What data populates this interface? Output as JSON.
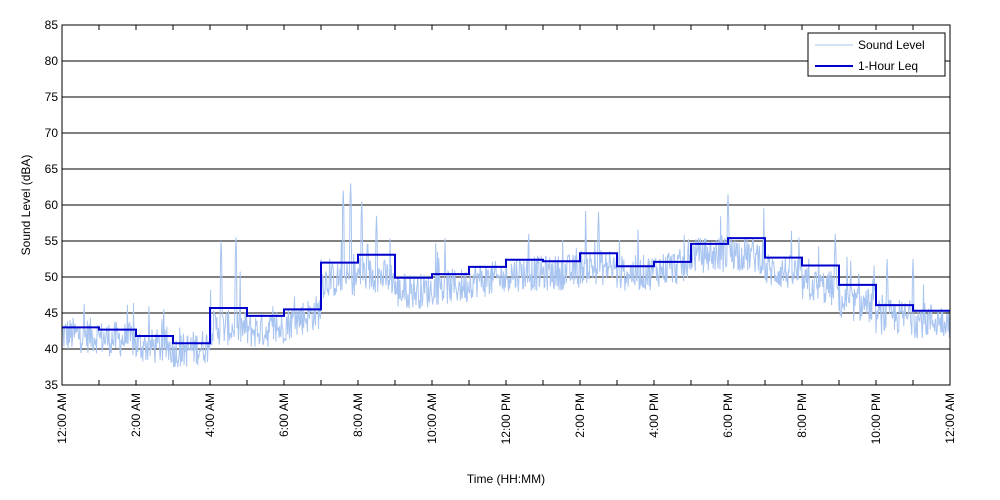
{
  "chart_data": {
    "type": "line",
    "xlabel": "Time (HH:MM)",
    "ylabel": "Sound Level (dBA)",
    "ylim": [
      35,
      85
    ],
    "yticks": [
      35,
      40,
      45,
      50,
      55,
      60,
      65,
      70,
      75,
      80,
      85
    ],
    "xlim_hours": [
      0,
      24
    ],
    "x_ticks": [
      {
        "hour": 0,
        "label": "12:00 AM"
      },
      {
        "hour": 2,
        "label": "2:00 AM"
      },
      {
        "hour": 4,
        "label": "4:00 AM"
      },
      {
        "hour": 6,
        "label": "6:00 AM"
      },
      {
        "hour": 8,
        "label": "8:00 AM"
      },
      {
        "hour": 10,
        "label": "10:00 AM"
      },
      {
        "hour": 12,
        "label": "12:00 PM"
      },
      {
        "hour": 14,
        "label": "2:00 PM"
      },
      {
        "hour": 16,
        "label": "4:00 PM"
      },
      {
        "hour": 18,
        "label": "6:00 PM"
      },
      {
        "hour": 20,
        "label": "8:00 PM"
      },
      {
        "hour": 22,
        "label": "10:00 PM"
      },
      {
        "hour": 24,
        "label": "12:00 AM"
      }
    ],
    "grid": "horizontal",
    "legend_position": "top-right",
    "series": [
      {
        "name": "Sound Level",
        "color": "#a8c4f0",
        "style": "thin-line",
        "hourly_baseline": [
          42,
          41.5,
          40.5,
          39.5,
          43,
          42.5,
          43.5,
          49.5,
          50.5,
          48,
          48.5,
          49.5,
          50.5,
          50.5,
          51.5,
          50.5,
          51,
          53,
          53.5,
          51,
          49,
          46.5,
          44.5,
          44
        ],
        "notable_peaks": [
          {
            "hour": 4.3,
            "value": 55
          },
          {
            "hour": 4.7,
            "value": 55.5
          },
          {
            "hour": 7.6,
            "value": 62
          },
          {
            "hour": 7.8,
            "value": 63
          },
          {
            "hour": 8.1,
            "value": 60.5
          },
          {
            "hour": 8.5,
            "value": 58.5
          },
          {
            "hour": 14.5,
            "value": 59
          },
          {
            "hour": 18.0,
            "value": 61.5
          },
          {
            "hour": 20.9,
            "value": 56
          },
          {
            "hour": 22.3,
            "value": 52.5
          },
          {
            "hour": 23.0,
            "value": 52.5
          }
        ]
      },
      {
        "name": "1-Hour Leq",
        "color": "#0000cc",
        "style": "step",
        "hourly_values": [
          43.0,
          42.7,
          41.8,
          40.8,
          45.7,
          44.6,
          45.5,
          52.0,
          53.1,
          49.9,
          50.4,
          51.4,
          52.4,
          52.2,
          53.3,
          51.5,
          52.1,
          54.6,
          55.4,
          52.7,
          51.6,
          48.9,
          46.1,
          45.3
        ]
      }
    ]
  }
}
